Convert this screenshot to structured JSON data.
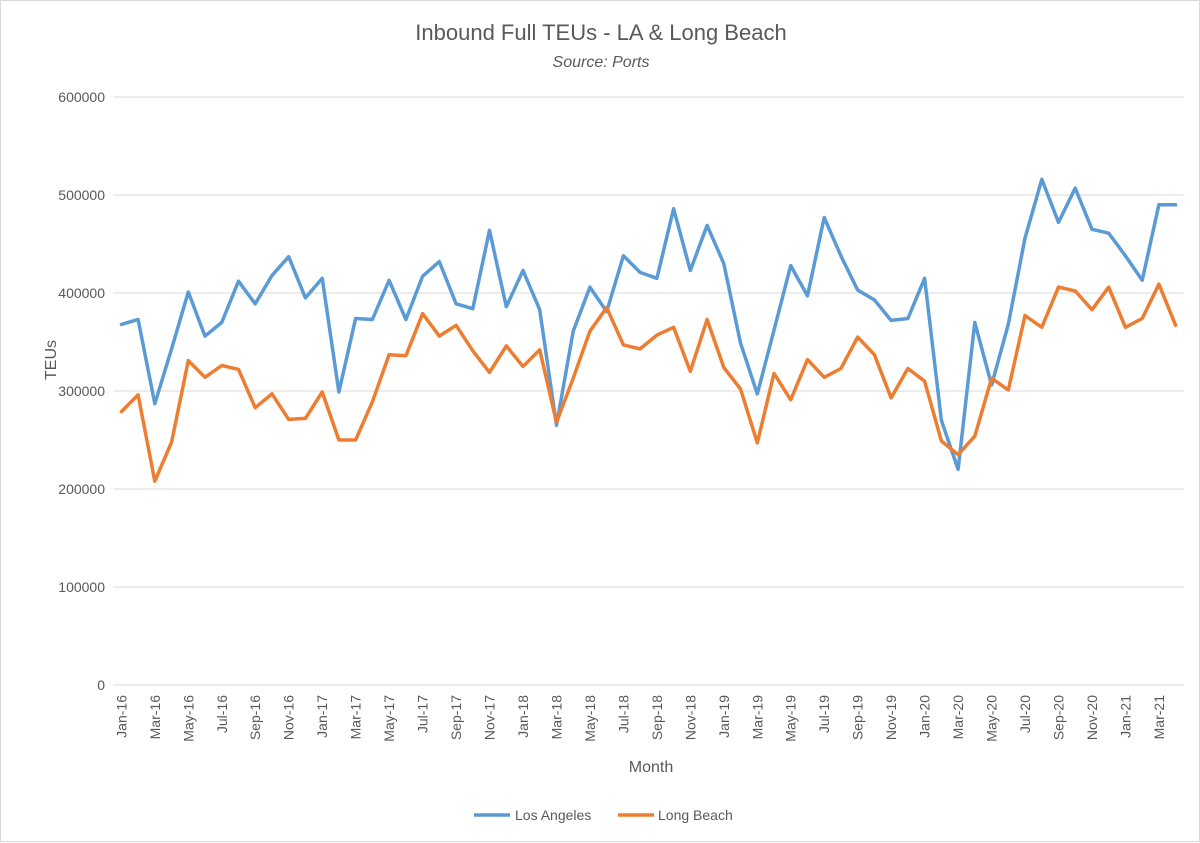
{
  "chart_data": {
    "type": "line",
    "title": "Inbound Full TEUs - LA & Long Beach",
    "subtitle": "Source: Ports",
    "xlabel": "Month",
    "ylabel": "TEUs",
    "ylim": [
      0,
      600000
    ],
    "yticks": [
      0,
      100000,
      200000,
      300000,
      400000,
      500000,
      600000
    ],
    "grid": true,
    "legend_position": "bottom",
    "categories": [
      "Jan-16",
      "Feb-16",
      "Mar-16",
      "Apr-16",
      "May-16",
      "Jun-16",
      "Jul-16",
      "Aug-16",
      "Sep-16",
      "Oct-16",
      "Nov-16",
      "Dec-16",
      "Jan-17",
      "Feb-17",
      "Mar-17",
      "Apr-17",
      "May-17",
      "Jun-17",
      "Jul-17",
      "Aug-17",
      "Sep-17",
      "Oct-17",
      "Nov-17",
      "Dec-17",
      "Jan-18",
      "Feb-18",
      "Mar-18",
      "Apr-18",
      "May-18",
      "Jun-18",
      "Jul-18",
      "Aug-18",
      "Sep-18",
      "Oct-18",
      "Nov-18",
      "Dec-18",
      "Jan-19",
      "Feb-19",
      "Mar-19",
      "Apr-19",
      "May-19",
      "Jun-19",
      "Jul-19",
      "Aug-19",
      "Sep-19",
      "Oct-19",
      "Nov-19",
      "Dec-19",
      "Jan-20",
      "Feb-20",
      "Mar-20",
      "Apr-20",
      "May-20",
      "Jun-20",
      "Jul-20",
      "Aug-20",
      "Sep-20",
      "Oct-20",
      "Nov-20",
      "Dec-20",
      "Jan-21",
      "Feb-21",
      "Mar-21",
      "Apr-21"
    ],
    "tick_labels_shown": [
      "Jan-16",
      "Mar-16",
      "May-16",
      "Jul-16",
      "Sep-16",
      "Nov-16",
      "Jan-17",
      "Mar-17",
      "May-17",
      "Jul-17",
      "Sep-17",
      "Nov-17",
      "Jan-18",
      "Mar-18",
      "May-18",
      "Jul-18",
      "Sep-18",
      "Nov-18",
      "Jan-19",
      "Mar-19",
      "May-19",
      "Jul-19",
      "Sep-19",
      "Nov-19",
      "Jan-20",
      "Mar-20",
      "May-20",
      "Jul-20",
      "Sep-20",
      "Nov-20",
      "Jan-21",
      "Mar-21"
    ],
    "series": [
      {
        "name": "Los Angeles",
        "color": "#5b9bd5",
        "values": [
          368000,
          373000,
          287000,
          343000,
          401000,
          356000,
          370000,
          412000,
          389000,
          418000,
          437000,
          395000,
          415000,
          299000,
          374000,
          373000,
          413000,
          373000,
          417000,
          432000,
          389000,
          384000,
          464000,
          386000,
          423000,
          383000,
          265000,
          361000,
          406000,
          381000,
          438000,
          421000,
          415000,
          486000,
          423000,
          469000,
          430000,
          349000,
          297000,
          362000,
          428000,
          397000,
          477000,
          438000,
          403000,
          393000,
          372000,
          374000,
          415000,
          270000,
          220000,
          370000,
          306000,
          368000,
          456000,
          516000,
          472000,
          507000,
          465000,
          461000,
          438000,
          413000,
          490000,
          490000
        ]
      },
      {
        "name": "Long Beach",
        "color": "#ed7d31",
        "values": [
          279000,
          296000,
          208000,
          248000,
          331000,
          314000,
          326000,
          322000,
          283000,
          297000,
          271000,
          272000,
          299000,
          250000,
          250000,
          289000,
          337000,
          336000,
          379000,
          356000,
          367000,
          341000,
          319000,
          346000,
          325000,
          342000,
          268000,
          313000,
          361000,
          385000,
          347000,
          343000,
          357000,
          365000,
          320000,
          373000,
          324000,
          302000,
          247000,
          318000,
          291000,
          332000,
          314000,
          323000,
          355000,
          337000,
          293000,
          323000,
          310000,
          249000,
          235000,
          254000,
          313000,
          301000,
          377000,
          365000,
          406000,
          402000,
          383000,
          406000,
          365000,
          374000,
          409000,
          367000
        ]
      }
    ]
  }
}
